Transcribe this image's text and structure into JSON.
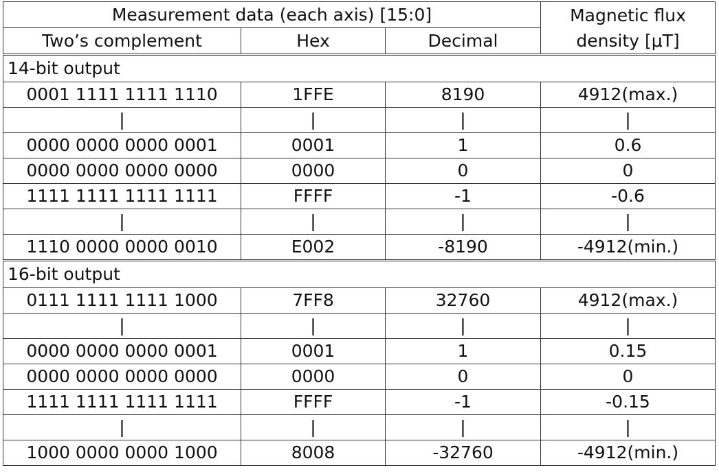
{
  "header": {
    "measurement": "Measurement data (each axis) [15:0]",
    "flux": [
      "Magnetic flux",
      "density [μT]"
    ],
    "twos": "Two’s complement",
    "hex": "Hex",
    "decimal": "Decimal"
  },
  "sections": [
    {
      "title": "14-bit output",
      "rows": [
        [
          "0001 1111 1111 1110",
          "1FFE",
          "8190",
          "4912(max.)"
        ],
        [
          "|",
          "|",
          "|",
          "|"
        ],
        [
          "0000 0000 0000 0001",
          "0001",
          "1",
          "0.6"
        ],
        [
          "0000 0000 0000 0000",
          "0000",
          "0",
          "0"
        ],
        [
          "1111 1111 1111 1111",
          "FFFF",
          "-1",
          "-0.6"
        ],
        [
          "|",
          "|",
          "|",
          "|"
        ],
        [
          "1110 0000 0000 0010",
          "E002",
          "-8190",
          "-4912(min.)"
        ]
      ]
    },
    {
      "title": "16-bit output",
      "rows": [
        [
          "0111 1111 1111 1000",
          "7FF8",
          "32760",
          "4912(max.)"
        ],
        [
          "|",
          "|",
          "|",
          "|"
        ],
        [
          "0000 0000 0000 0001",
          "0001",
          "1",
          "0.15"
        ],
        [
          "0000 0000 0000 0000",
          "0000",
          "0",
          "0"
        ],
        [
          "1111 1111 1111 1111",
          "FFFF",
          "-1",
          "-0.15"
        ],
        [
          "|",
          "|",
          "|",
          "|"
        ],
        [
          "1000 0000 0000 1000",
          "8008",
          "-32760",
          "-4912(min.)"
        ]
      ]
    }
  ]
}
